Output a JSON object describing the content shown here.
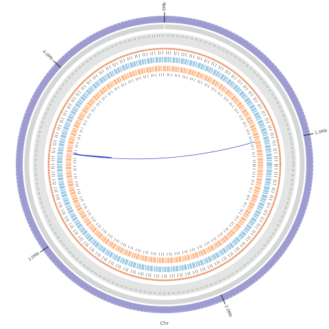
{
  "chart_data": {
    "type": "circos",
    "xlabel": "Chr",
    "xlim": [
      0,
      4.6
    ],
    "xticks": [
      {
        "value": 0,
        "label": "0Mb"
      },
      {
        "value": 1,
        "label": "1.0Mb"
      },
      {
        "value": 2,
        "label": "2.0Mb"
      },
      {
        "value": 3,
        "label": "3.0Mb"
      },
      {
        "value": 4,
        "label": "4.0Mb"
      }
    ]
  }
}
